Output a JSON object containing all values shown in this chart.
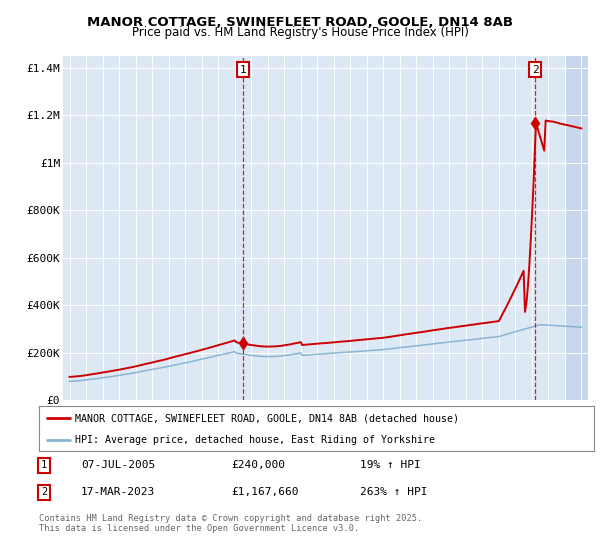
{
  "title_line1": "MANOR COTTAGE, SWINEFLEET ROAD, GOOLE, DN14 8AB",
  "title_line2": "Price paid vs. HM Land Registry's House Price Index (HPI)",
  "bg_color": "#dce9f5",
  "hatch_color": "#c8d8ea",
  "grid_color": "#ffffff",
  "red_line_color": "#cc0000",
  "blue_line_color": "#8ab4d4",
  "annotation1_date": "07-JUL-2005",
  "annotation1_price": "£240,000",
  "annotation1_hpi": "19% ↑ HPI",
  "annotation2_date": "17-MAR-2023",
  "annotation2_price": "£1,167,660",
  "annotation2_hpi": "263% ↑ HPI",
  "legend_line1": "MANOR COTTAGE, SWINEFLEET ROAD, GOOLE, DN14 8AB (detached house)",
  "legend_line2": "HPI: Average price, detached house, East Riding of Yorkshire",
  "footer": "Contains HM Land Registry data © Crown copyright and database right 2025.\nThis data is licensed under the Open Government Licence v3.0.",
  "ylim": [
    0,
    1450000
  ],
  "yticks": [
    0,
    200000,
    400000,
    600000,
    800000,
    1000000,
    1200000,
    1400000
  ],
  "ytick_labels": [
    "£0",
    "£200K",
    "£400K",
    "£600K",
    "£800K",
    "£1M",
    "£1.2M",
    "£1.4M"
  ],
  "sale1_x": 2005.52,
  "sale1_y": 240000,
  "sale2_x": 2023.21,
  "sale2_y": 1167660,
  "xmin": 1994.6,
  "xmax": 2026.4,
  "hatch_start": 2025.0
}
